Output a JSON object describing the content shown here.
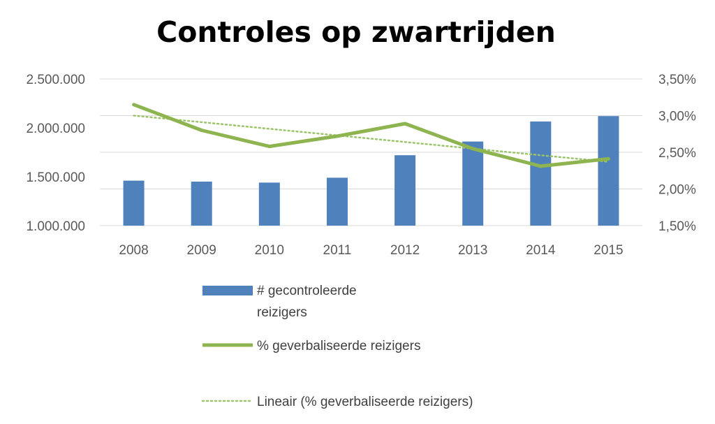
{
  "chart_data": {
    "type": "bar",
    "title": "Controles op zwartrijden",
    "categories": [
      "2008",
      "2009",
      "2010",
      "2011",
      "2012",
      "2013",
      "2014",
      "2015"
    ],
    "series": [
      {
        "name": "# gecontroleerde reizigers",
        "type": "bar",
        "axis": "left",
        "color": "#4F81BD",
        "values": [
          1460000,
          1450000,
          1440000,
          1490000,
          1720000,
          1860000,
          2065000,
          2120000
        ]
      },
      {
        "name": "% geverbaliseerde reizigers",
        "type": "line",
        "axis": "right",
        "color": "#8DB44E",
        "values": [
          3.15,
          2.8,
          2.58,
          2.72,
          2.89,
          2.55,
          2.31,
          2.41
        ]
      },
      {
        "name": "Lineair (% geverbaliseerde reizigers)",
        "type": "trendline",
        "axis": "right",
        "color": "#9BC46A",
        "values": [
          3.0,
          2.91,
          2.82,
          2.73,
          2.64,
          2.55,
          2.46,
          2.37
        ]
      }
    ],
    "left_axis": {
      "ylim": [
        1000000,
        2500000
      ],
      "ticks": [
        1000000,
        1500000,
        2000000,
        2500000
      ],
      "tick_labels": [
        "1.000.000",
        "1.500.000",
        "2.000.000",
        "2.500.000"
      ]
    },
    "right_axis": {
      "ylim": [
        1.5,
        3.5
      ],
      "ticks": [
        1.5,
        2.0,
        2.5,
        3.0,
        3.5
      ],
      "tick_labels": [
        "1,50%",
        "2,00%",
        "2,50%",
        "3,00%",
        "3,50%"
      ]
    },
    "grid": true,
    "legend_position": "bottom",
    "legend": [
      {
        "lines": [
          "# gecontroleerde",
          "reizigers"
        ]
      },
      {
        "lines": [
          "% geverbaliseerde reizigers"
        ]
      },
      {
        "lines": [
          "Lineair (% geverbaliseerde reizigers)"
        ]
      }
    ]
  }
}
